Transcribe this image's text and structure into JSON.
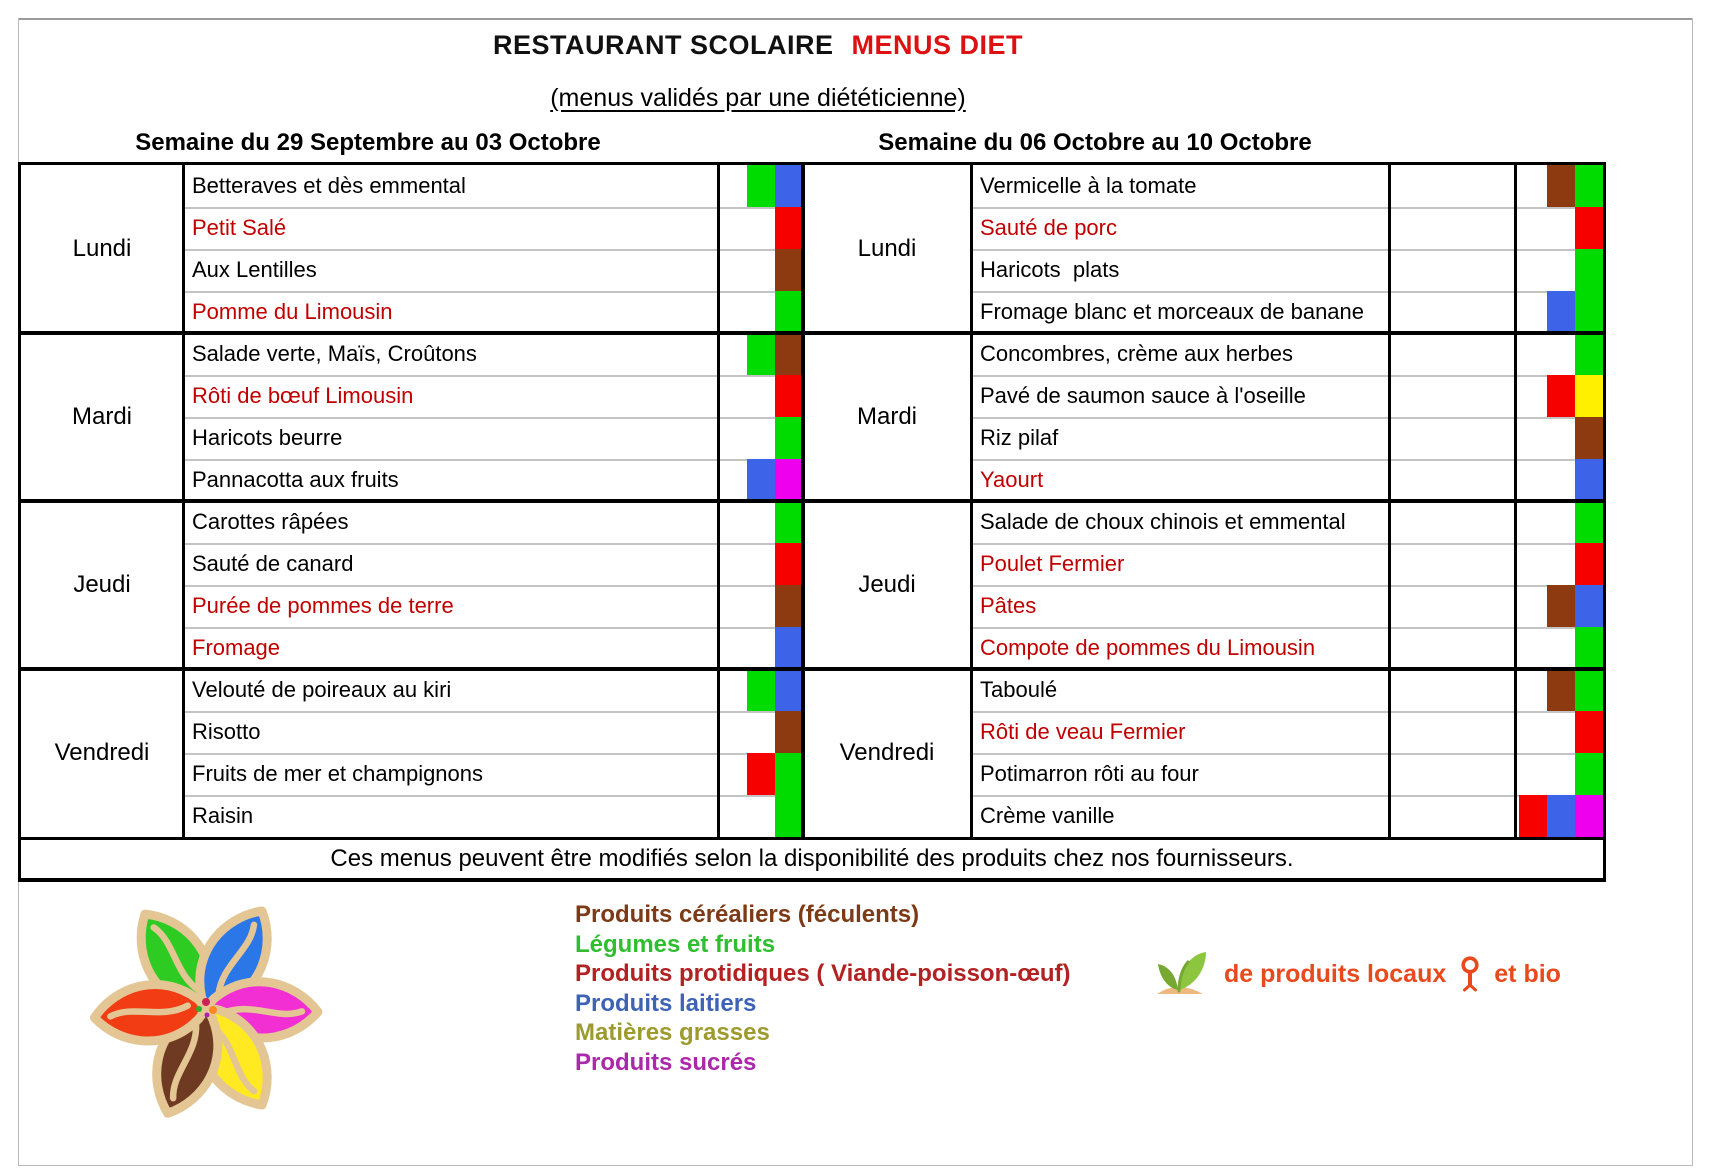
{
  "title": {
    "main": "RESTAURANT SCOLAIRE",
    "highlight": "MENUS DIET",
    "subtitle": "(menus validés par une diététicienne)"
  },
  "note": "Ces menus peuvent être modifiés selon la disponibilité des produits chez nos fournisseurs.",
  "category_colors": {
    "green": "#00dc00",
    "red": "#f70000",
    "brown": "#8e3a10",
    "blue": "#3d63e8",
    "magenta": "#ee00ee",
    "yellow": "#fff000"
  },
  "weeks": [
    {
      "header": "Semaine du 29 Septembre au 03 Octobre",
      "days": [
        {
          "name": "Lundi",
          "items": [
            {
              "text": "Betteraves et dès emmental",
              "red": false,
              "swatches": [
                "green",
                "blue"
              ]
            },
            {
              "text": "Petit Salé",
              "red": true,
              "swatches": [
                "red"
              ]
            },
            {
              "text": "Aux Lentilles",
              "red": false,
              "swatches": [
                "brown"
              ]
            },
            {
              "text": "Pomme du Limousin",
              "red": true,
              "swatches": [
                "green"
              ]
            }
          ]
        },
        {
          "name": "Mardi",
          "items": [
            {
              "text": "Salade verte, Maïs, Croûtons",
              "red": false,
              "swatches": [
                "green",
                "brown"
              ]
            },
            {
              "text": "Rôti de bœuf Limousin",
              "red": true,
              "swatches": [
                "red"
              ]
            },
            {
              "text": "Haricots beurre",
              "red": false,
              "swatches": [
                "green"
              ]
            },
            {
              "text": "Pannacotta aux fruits",
              "red": false,
              "swatches": [
                "blue",
                "magenta"
              ]
            }
          ]
        },
        {
          "name": "Jeudi",
          "items": [
            {
              "text": "Carottes râpées",
              "red": false,
              "swatches": [
                "green"
              ]
            },
            {
              "text": "Sauté de canard",
              "red": false,
              "swatches": [
                "red"
              ]
            },
            {
              "text": "Purée de pommes de terre",
              "red": true,
              "swatches": [
                "brown"
              ]
            },
            {
              "text": "Fromage",
              "red": true,
              "swatches": [
                "blue"
              ]
            }
          ]
        },
        {
          "name": "Vendredi",
          "items": [
            {
              "text": "Velouté de poireaux au kiri",
              "red": false,
              "swatches": [
                "green",
                "blue"
              ]
            },
            {
              "text": "Risotto",
              "red": false,
              "swatches": [
                "brown"
              ]
            },
            {
              "text": "Fruits de mer et champignons",
              "red": false,
              "swatches": [
                "red",
                "green"
              ]
            },
            {
              "text": "Raisin",
              "red": false,
              "swatches": [
                "green"
              ]
            }
          ]
        }
      ]
    },
    {
      "header": "Semaine du 06 Octobre au 10 Octobre",
      "days": [
        {
          "name": "Lundi",
          "items": [
            {
              "text": "Vermicelle à la tomate",
              "red": false,
              "swatches": [
                "brown",
                "green"
              ]
            },
            {
              "text": "Sauté de porc",
              "red": true,
              "swatches": [
                "red"
              ]
            },
            {
              "text": "Haricots  plats",
              "red": false,
              "swatches": [
                "green"
              ]
            },
            {
              "text": "Fromage blanc et morceaux de banane",
              "red": false,
              "swatches": [
                "blue",
                "green"
              ]
            }
          ]
        },
        {
          "name": "Mardi",
          "items": [
            {
              "text": "Concombres, crème aux herbes",
              "red": false,
              "swatches": [
                "green"
              ]
            },
            {
              "text": "Pavé de saumon sauce à l'oseille",
              "red": false,
              "swatches": [
                "red",
                "yellow"
              ]
            },
            {
              "text": "Riz pilaf",
              "red": false,
              "swatches": [
                "brown"
              ]
            },
            {
              "text": "Yaourt",
              "red": true,
              "swatches": [
                "blue"
              ]
            }
          ]
        },
        {
          "name": "Jeudi",
          "items": [
            {
              "text": "Salade de choux chinois et emmental",
              "red": false,
              "swatches": [
                "green"
              ]
            },
            {
              "text": "Poulet Fermier",
              "red": true,
              "swatches": [
                "red"
              ]
            },
            {
              "text": "Pâtes",
              "red": true,
              "swatches": [
                "brown",
                "blue"
              ]
            },
            {
              "text": "Compote de pommes du Limousin",
              "red": true,
              "swatches": [
                "green"
              ]
            }
          ]
        },
        {
          "name": "Vendredi",
          "items": [
            {
              "text": "Taboulé",
              "red": false,
              "swatches": [
                "brown",
                "green"
              ]
            },
            {
              "text": "Rôti de veau Fermier",
              "red": true,
              "swatches": [
                "red"
              ]
            },
            {
              "text": "Potimarron rôti au four",
              "red": false,
              "swatches": [
                "green"
              ]
            },
            {
              "text": "Crème vanille",
              "red": false,
              "swatches": [
                "red",
                "blue",
                "magenta"
              ]
            }
          ]
        }
      ]
    }
  ],
  "legend": [
    {
      "label": "Produits céréaliers (féculents)",
      "color": "#7c3a16"
    },
    {
      "label": "Légumes et fruits",
      "color": "#2fbe2f"
    },
    {
      "label": "Produits protidiques ( Viande-poisson-œuf)",
      "color": "#b22222"
    },
    {
      "label": "Produits laitiers",
      "color": "#3e63b5"
    },
    {
      "label": "Matières grasses",
      "color": "#9d9b2e"
    },
    {
      "label": "Produits sucrés",
      "color": "#aa28aa"
    }
  ],
  "bio_banner": {
    "text_before": "de produits locaux",
    "text_after": "et bio",
    "color": "#e8491d",
    "icons": [
      "sprout-icon",
      "location-pin-icon"
    ]
  },
  "logo": {
    "name": "flower-logo",
    "petal_colors": [
      "#2ecc22",
      "#2c77e8",
      "#f12fd3",
      "#ffe920",
      "#6e3a22",
      "#f23c14"
    ],
    "outline_color": "#e3c694"
  }
}
